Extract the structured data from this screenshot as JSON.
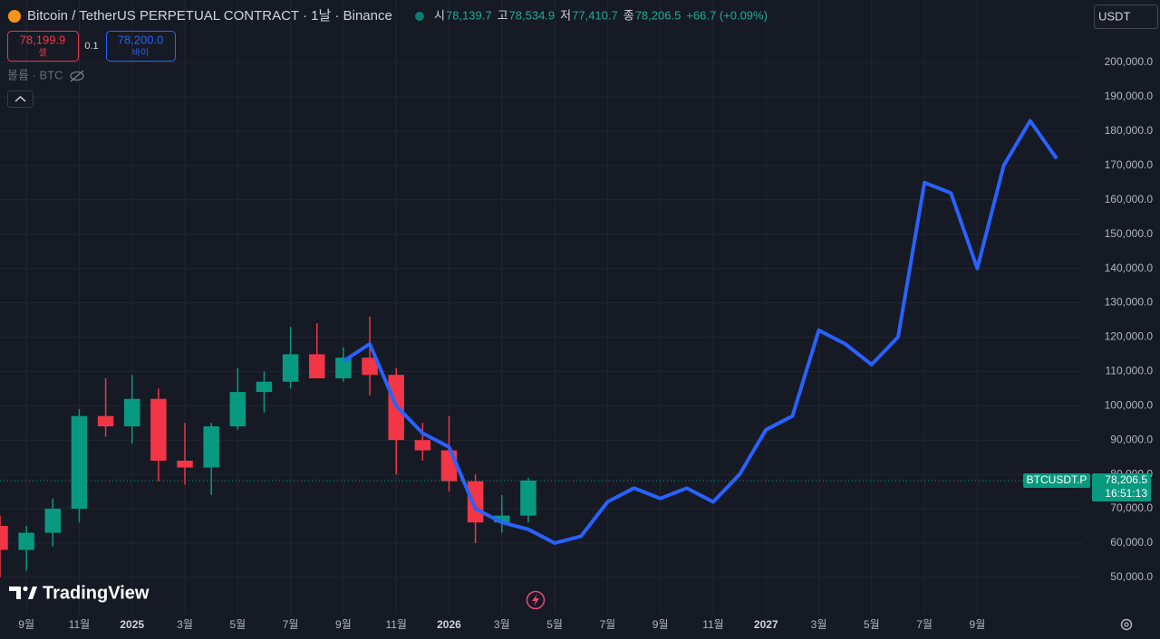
{
  "chart_data": {
    "type": "candlestick",
    "title": "Bitcoin / TetherUS PERPETUAL CONTRACT · 1날 · Binance",
    "ohlc": [
      {
        "label": "시",
        "value": "78,139.7"
      },
      {
        "label": "고",
        "value": "78,534.9"
      },
      {
        "label": "저",
        "value": "77,410.7"
      },
      {
        "label": "종",
        "value": "78,206.5"
      }
    ],
    "change": "+66.7 (+0.09%)",
    "sell": {
      "price": "78,199.9",
      "label": "셀"
    },
    "quantity": "0.1",
    "buy": {
      "price": "78,200.0",
      "label": "바이"
    },
    "volume_label": "볼륨 · BTC",
    "currency": "USDT",
    "symbol": "BTCUSDT.P",
    "last_price": 78206.5,
    "last_price_label": "78,206.5",
    "countdown": "16:51:13",
    "brand": "TradingView",
    "x": [
      "2024-08",
      "2024-09",
      "2024-10",
      "2024-11",
      "2024-12",
      "2025-01",
      "2025-02",
      "2025-03",
      "2025-04",
      "2025-05",
      "2025-06",
      "2025-07",
      "2025-08",
      "2025-09",
      "2025-10",
      "2025-11",
      "2025-12",
      "2026-01",
      "2026-02",
      "2026-03",
      "2026-04",
      "2026-05",
      "2026-06",
      "2026-07",
      "2026-08",
      "2026-09",
      "2026-10",
      "2026-11",
      "2026-12",
      "2027-01",
      "2027-02",
      "2027-03",
      "2027-04",
      "2027-05",
      "2027-06",
      "2027-07",
      "2027-08",
      "2027-09",
      "2027-10",
      "2027-11",
      "2027-12"
    ],
    "xlim": [
      "2024-08",
      "2028-01"
    ],
    "xticks": [
      {
        "value": "2024-09",
        "label": "9월"
      },
      {
        "value": "2024-11",
        "label": "11월"
      },
      {
        "value": "2025-01",
        "label": "2025"
      },
      {
        "value": "2025-03",
        "label": "3월"
      },
      {
        "value": "2025-05",
        "label": "5월"
      },
      {
        "value": "2025-07",
        "label": "7월"
      },
      {
        "value": "2025-09",
        "label": "9월"
      },
      {
        "value": "2025-11",
        "label": "11월"
      },
      {
        "value": "2026-01",
        "label": "2026"
      },
      {
        "value": "2026-03",
        "label": "3월"
      },
      {
        "value": "2026-05",
        "label": "5월"
      },
      {
        "value": "2026-07",
        "label": "7월"
      },
      {
        "value": "2026-09",
        "label": "9월"
      },
      {
        "value": "2026-11",
        "label": "11월"
      },
      {
        "value": "2027-01",
        "label": "2027"
      },
      {
        "value": "2027-03",
        "label": "3월"
      },
      {
        "value": "2027-05",
        "label": "5월"
      },
      {
        "value": "2027-07",
        "label": "7월"
      },
      {
        "value": "2027-09",
        "label": "9월"
      }
    ],
    "ylim": [
      38900,
      210300
    ],
    "yticks": [
      {
        "value": 50000,
        "label": "50,000.0"
      },
      {
        "value": 60000,
        "label": "60,000.0"
      },
      {
        "value": 70000,
        "label": "70,000.0"
      },
      {
        "value": 80000,
        "label": "80,000.0"
      },
      {
        "value": 90000,
        "label": "90,000.0"
      },
      {
        "value": 100000,
        "label": "100,000.0"
      },
      {
        "value": 110000,
        "label": "110,000.0"
      },
      {
        "value": 120000,
        "label": "120,000.0"
      },
      {
        "value": 130000,
        "label": "130,000.0"
      },
      {
        "value": 140000,
        "label": "140,000.0"
      },
      {
        "value": 150000,
        "label": "150,000.0"
      },
      {
        "value": 160000,
        "label": "160,000.0"
      },
      {
        "value": 170000,
        "label": "170,000.0"
      },
      {
        "value": 180000,
        "label": "180,000.0"
      },
      {
        "value": 190000,
        "label": "190,000.0"
      },
      {
        "value": 200000,
        "label": "200,000.0"
      }
    ],
    "grid": true,
    "series": [
      {
        "type": "candlestick",
        "up_color": "#089981",
        "down_color": "#f23645",
        "open": [
          65000,
          58000,
          63000,
          70000,
          97000,
          94000,
          102000,
          84000,
          82000,
          94000,
          104000,
          107000,
          115000,
          108000,
          114000,
          109000,
          90000,
          87000,
          78000,
          66000,
          68000,
          null,
          null,
          null,
          null,
          null,
          null,
          null,
          null,
          null,
          null,
          null,
          null,
          null,
          null,
          null,
          null,
          null,
          null,
          null,
          null
        ],
        "high": [
          68000,
          65000,
          73000,
          99000,
          108000,
          109000,
          105000,
          95000,
          95000,
          111000,
          110000,
          123000,
          124000,
          117000,
          126000,
          111000,
          95000,
          97000,
          80000,
          74000,
          79000,
          null,
          null,
          null,
          null,
          null,
          null,
          null,
          null,
          null,
          null,
          null,
          null,
          null,
          null,
          null,
          null,
          null,
          null,
          null,
          null
        ],
        "low": [
          50000,
          52000,
          59000,
          66000,
          91000,
          89000,
          78000,
          77000,
          74000,
          93000,
          98000,
          105000,
          108000,
          107000,
          103000,
          80000,
          84000,
          75000,
          60000,
          63000,
          66000,
          null,
          null,
          null,
          null,
          null,
          null,
          null,
          null,
          null,
          null,
          null,
          null,
          null,
          null,
          null,
          null,
          null,
          null,
          null,
          null
        ],
        "close": [
          58000,
          63000,
          70000,
          97000,
          94000,
          102000,
          84000,
          82000,
          94000,
          104000,
          107000,
          115000,
          108000,
          114000,
          109000,
          90000,
          87000,
          78000,
          66000,
          68000,
          78206.5,
          null,
          null,
          null,
          null,
          null,
          null,
          null,
          null,
          null,
          null,
          null,
          null,
          null,
          null,
          null,
          null,
          null,
          null,
          null,
          null
        ]
      },
      {
        "type": "line",
        "color": "#2962ff",
        "values": [
          null,
          null,
          null,
          null,
          null,
          null,
          null,
          null,
          null,
          null,
          null,
          null,
          null,
          113000,
          118000,
          100000,
          92000,
          88000,
          70000,
          66000,
          64000,
          60000,
          62000,
          72000,
          76000,
          73000,
          76000,
          72000,
          80000,
          93000,
          97000,
          122000,
          118000,
          112000,
          120000,
          165000,
          162000,
          140000,
          170000,
          183000,
          172000
        ]
      }
    ]
  }
}
